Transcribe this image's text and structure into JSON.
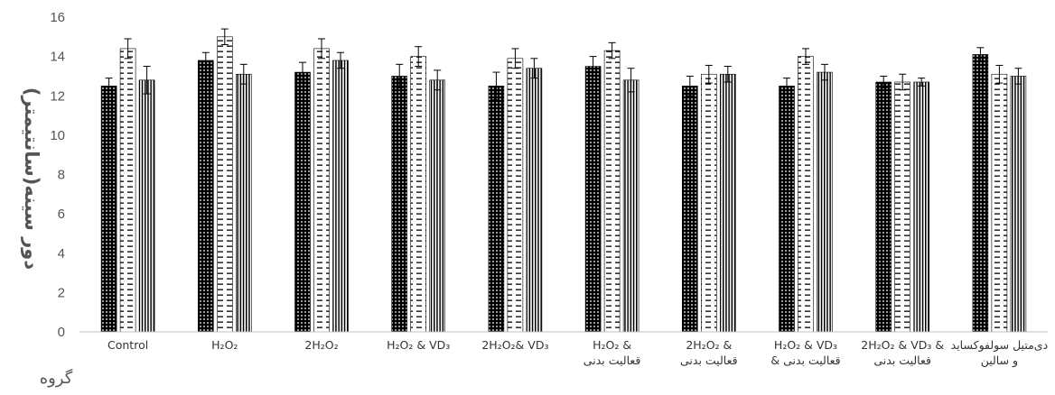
{
  "chart_data": {
    "type": "bar",
    "title": "",
    "xlabel": "گروه",
    "ylabel": "دور سینه(سانتیمتر)",
    "ylim": [
      0,
      16
    ],
    "yticks": [
      "0",
      "2",
      "4",
      "6",
      "8",
      "10",
      "12",
      "14",
      "16"
    ],
    "grid": false,
    "legend": "none",
    "categories": [
      [
        "Control"
      ],
      [
        "H₂O₂"
      ],
      [
        "2H₂O₂"
      ],
      [
        "H₂O₂ & VD₃"
      ],
      [
        "2H₂O₂& VD₃"
      ],
      [
        "H₂O₂ &",
        "قعالیت بدنی"
      ],
      [
        "2H₂O₂ &",
        "قعالیت بدنی"
      ],
      [
        "H₂O₂ & VD₃",
        "& قعالیت بدنی"
      ],
      [
        "2H₂O₂ & VD₃ &",
        "قعالیت بدنی"
      ],
      [
        "دی‌متیل سولفوکساید",
        "و سالین"
      ]
    ],
    "series": [
      {
        "pattern": "dots-black",
        "values": [
          12.5,
          13.8,
          13.2,
          13.0,
          12.5,
          13.5,
          12.5,
          12.5,
          12.7,
          14.1
        ],
        "errors": [
          0.4,
          0.4,
          0.5,
          0.6,
          0.7,
          0.5,
          0.5,
          0.4,
          0.3,
          0.35
        ]
      },
      {
        "pattern": "dashes",
        "values": [
          14.4,
          15.0,
          14.4,
          14.0,
          13.9,
          14.3,
          13.1,
          14.0,
          12.7,
          13.1
        ],
        "errors": [
          0.5,
          0.4,
          0.5,
          0.5,
          0.5,
          0.4,
          0.45,
          0.4,
          0.4,
          0.45
        ]
      },
      {
        "pattern": "vertical-lines",
        "values": [
          12.8,
          13.1,
          13.8,
          12.8,
          13.4,
          12.8,
          13.1,
          13.2,
          12.7,
          13.0
        ],
        "errors": [
          0.7,
          0.5,
          0.4,
          0.5,
          0.5,
          0.6,
          0.4,
          0.4,
          0.2,
          0.4
        ]
      }
    ]
  }
}
